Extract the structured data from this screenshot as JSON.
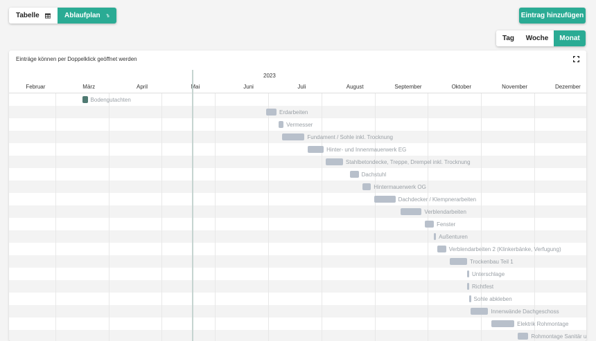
{
  "toolbar": {
    "table_label": "Tabelle",
    "table_icon": "table-icon",
    "plan_label": "Ablaufplan",
    "plan_icon": "gantt-icon",
    "add_label": "Eintrag hinzufügen",
    "accent": "#2aab94"
  },
  "view": {
    "day": "Tag",
    "week": "Woche",
    "month": "Monat",
    "selected": "Monat"
  },
  "chart": {
    "hint": "Einträge können per Doppelklick geöffnet werden",
    "year": "2023",
    "months": [
      "Februar",
      "März",
      "April",
      "Mai",
      "Juni",
      "Juli",
      "August",
      "September",
      "Oktober",
      "November",
      "Dezember"
    ],
    "rows": [
      {
        "label": "Bodengutachten",
        "start": "2023-03-15",
        "end": "2023-03-18",
        "done": true
      },
      {
        "label": "Erdarbeiten",
        "start": "2023-06-28",
        "end": "2023-07-04",
        "done": false
      },
      {
        "label": "Vermesser",
        "start": "2023-07-05",
        "end": "2023-07-08",
        "done": false
      },
      {
        "label": "Fundament / Sohle inkl. Trocknung",
        "start": "2023-07-07",
        "end": "2023-07-20",
        "done": false
      },
      {
        "label": "Hinter- und Innenmauerwerk EG",
        "start": "2023-07-22",
        "end": "2023-07-31",
        "done": false
      },
      {
        "label": "Stahlbetondecke, Treppe, Drempel inkl. Trocknung",
        "start": "2023-08-01",
        "end": "2023-08-11",
        "done": false
      },
      {
        "label": "Dachstuhl",
        "start": "2023-08-15",
        "end": "2023-08-20",
        "done": false
      },
      {
        "label": "Hintermauerwerk OG",
        "start": "2023-08-22",
        "end": "2023-08-27",
        "done": false
      },
      {
        "label": "Dachdecker / Klempnerarbeiten",
        "start": "2023-08-29",
        "end": "2023-09-10",
        "done": false
      },
      {
        "label": "Verblendarbeiten",
        "start": "2023-09-13",
        "end": "2023-09-25",
        "done": false
      },
      {
        "label": "Fenster",
        "start": "2023-09-27",
        "end": "2023-10-02",
        "done": false
      },
      {
        "label": "Außenturen",
        "start": "2023-10-02",
        "end": "2023-10-03",
        "done": false
      },
      {
        "label": "Verblendarbeiten 2 (Klinkerbänke, Verfugung)",
        "start": "2023-10-04",
        "end": "2023-10-09",
        "done": false
      },
      {
        "label": "Trockenbau Teil 1",
        "start": "2023-10-11",
        "end": "2023-10-21",
        "done": false
      },
      {
        "label": "Unterschlage",
        "start": "2023-10-21",
        "end": "2023-10-22",
        "done": false
      },
      {
        "label": "Richtfest",
        "start": "2023-10-21",
        "end": "2023-10-22",
        "done": false
      },
      {
        "label": "Sohle abkleben",
        "start": "2023-10-22",
        "end": "2023-10-23",
        "done": false
      },
      {
        "label": "Innenwände Dachgeschoss",
        "start": "2023-10-23",
        "end": "2023-11-02",
        "done": false
      },
      {
        "label": "Elektrik Rohmontage",
        "start": "2023-11-04",
        "end": "2023-11-17",
        "done": false
      },
      {
        "label": "Rohmontage Sanitär u",
        "start": "2023-11-19",
        "end": "2023-11-25",
        "done": false
      }
    ]
  }
}
